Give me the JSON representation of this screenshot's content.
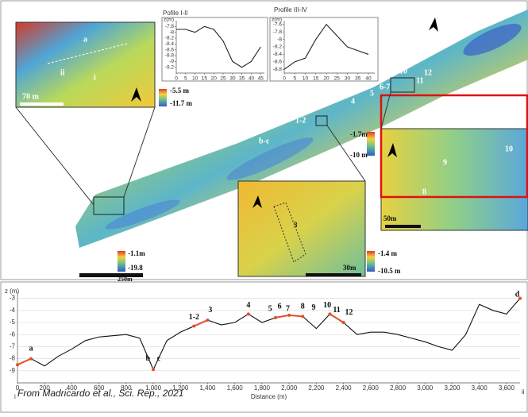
{
  "map": {
    "labels": [
      "a",
      "ii",
      "i",
      "70 m",
      "-5.5 m",
      "-11.7 m",
      "1-2",
      "b-c",
      "4",
      "5",
      "6-7",
      "10",
      "11",
      "12",
      "-1.7m",
      "-10 m",
      "10",
      "9",
      "8",
      "50m",
      "3",
      "30m",
      "-1.4 m",
      "-10.5 m",
      "-1.1m",
      "-19.8",
      "250m"
    ]
  },
  "caption": "From Madricardo et al., Sci. Rep., 2021",
  "chart_data": [
    {
      "type": "line",
      "title": "Pofile I-II",
      "ylabel": "z(m)",
      "xlim": [
        0,
        47
      ],
      "ylim": [
        -9.4,
        -7.6
      ],
      "xticks": [
        0,
        5,
        10,
        15,
        20,
        25,
        30,
        35,
        40,
        45
      ],
      "yticks": [
        -7.8,
        -8,
        -8.2,
        -8.4,
        -8.6,
        -8.8,
        -9,
        -9.2
      ],
      "x": [
        0,
        5,
        10,
        15,
        20,
        25,
        30,
        35,
        40,
        45
      ],
      "series": [
        {
          "color": "#222222",
          "values": [
            -7.9,
            -7.9,
            -8.0,
            -7.8,
            -7.9,
            -8.3,
            -9.0,
            -9.2,
            -9.0,
            -8.5
          ]
        }
      ]
    },
    {
      "type": "line",
      "title": "Profile III-IV",
      "ylabel": "z(m)",
      "xlim": [
        0,
        43
      ],
      "ylim": [
        -8.9,
        -7.5
      ],
      "xticks": [
        0,
        5,
        10,
        15,
        20,
        25,
        30,
        35,
        40
      ],
      "yticks": [
        -7.6,
        -7.8,
        -8,
        -8.2,
        -8.4,
        -8.6,
        -8.8
      ],
      "x": [
        0,
        5,
        10,
        15,
        20,
        25,
        30,
        35,
        40
      ],
      "series": [
        {
          "color": "#222222",
          "values": [
            -8.8,
            -8.6,
            -8.5,
            -8.0,
            -7.6,
            -7.9,
            -8.2,
            -8.3,
            -8.4
          ]
        }
      ]
    },
    {
      "type": "line",
      "ylabel": "z (m)",
      "xlabel": "Distance (m)",
      "left_end": "i",
      "right_end": "ii",
      "grid": true,
      "xlim": [
        0,
        3700
      ],
      "ylim": [
        -10,
        -2.5
      ],
      "xticks": [
        0,
        200,
        400,
        600,
        800,
        {
          "value": 1000,
          "label": "1,000"
        },
        {
          "value": 1200,
          "label": "1,200"
        },
        {
          "value": 1400,
          "label": "1,400"
        },
        {
          "value": 1600,
          "label": "1,600"
        },
        {
          "value": 1800,
          "label": "1,800"
        },
        {
          "value": 2000,
          "label": "2,000"
        },
        {
          "value": 2200,
          "label": "2,200"
        },
        {
          "value": 2400,
          "label": "2,400"
        },
        {
          "value": 2600,
          "label": "2,600"
        },
        {
          "value": 2800,
          "label": "2,800"
        },
        {
          "value": 3000,
          "label": "3,000"
        },
        {
          "value": 3200,
          "label": "3,200"
        },
        {
          "value": 3400,
          "label": "3,400"
        },
        {
          "value": 3600,
          "label": "3,600"
        }
      ],
      "yticks": [
        -3,
        -4,
        -5,
        -6,
        -7,
        -8,
        -9
      ],
      "x": [
        0,
        100,
        200,
        300,
        400,
        500,
        600,
        700,
        800,
        900,
        1000,
        1100,
        1200,
        1300,
        1400,
        1500,
        1600,
        1700,
        1800,
        1900,
        2000,
        2100,
        2200,
        2300,
        2400,
        2500,
        2600,
        2700,
        2800,
        2900,
        3000,
        3100,
        3200,
        3300,
        3400,
        3500,
        3600,
        3700
      ],
      "series": [
        {
          "color": "#111111",
          "values": [
            -8.5,
            -8.0,
            -8.6,
            -7.8,
            -7.2,
            -6.5,
            -6.2,
            -6.1,
            -6.0,
            -6.3,
            -8.9,
            -6.5,
            -5.8,
            -5.3,
            -4.8,
            -5.2,
            -5.0,
            -4.3,
            -5.0,
            -4.6,
            -4.4,
            -4.5,
            -5.5,
            -4.3,
            -5.0,
            -6.0,
            -5.8,
            -5.8,
            -6.0,
            -6.3,
            -6.6,
            -7.0,
            -7.3,
            -6.0,
            -3.5,
            -4.0,
            -4.3,
            -3.0
          ]
        },
        {
          "color": "#e0502a",
          "values": [
            -8.5,
            -8.0,
            null,
            null,
            null,
            null,
            null,
            null,
            null,
            null,
            -8.9,
            null,
            null,
            -5.3,
            -4.8,
            null,
            null,
            -4.3,
            null,
            -4.6,
            -4.4,
            -4.5,
            null,
            -4.3,
            -5.0,
            null,
            null,
            null,
            null,
            null,
            null,
            null,
            null,
            null,
            null,
            null,
            null,
            -3.0
          ]
        }
      ],
      "annotations": [
        {
          "text": "a",
          "x": 100,
          "y": -7.2
        },
        {
          "text": "b",
          "x": 960,
          "y": -8.0
        },
        {
          "text": "c",
          "x": 1040,
          "y": -8.0
        },
        {
          "text": "1-2",
          "x": 1300,
          "y": -4.6
        },
        {
          "text": "3",
          "x": 1420,
          "y": -4.0
        },
        {
          "text": "4",
          "x": 1700,
          "y": -3.6
        },
        {
          "text": "5",
          "x": 1860,
          "y": -3.9
        },
        {
          "text": "6",
          "x": 1930,
          "y": -3.7
        },
        {
          "text": "7",
          "x": 1990,
          "y": -3.9
        },
        {
          "text": "8",
          "x": 2100,
          "y": -3.7
        },
        {
          "text": "9",
          "x": 2180,
          "y": -3.8
        },
        {
          "text": "10",
          "x": 2280,
          "y": -3.6
        },
        {
          "text": "11",
          "x": 2350,
          "y": -4.0
        },
        {
          "text": "12",
          "x": 2440,
          "y": -4.2
        },
        {
          "text": "d",
          "x": 3680,
          "y": -2.7
        }
      ]
    }
  ]
}
